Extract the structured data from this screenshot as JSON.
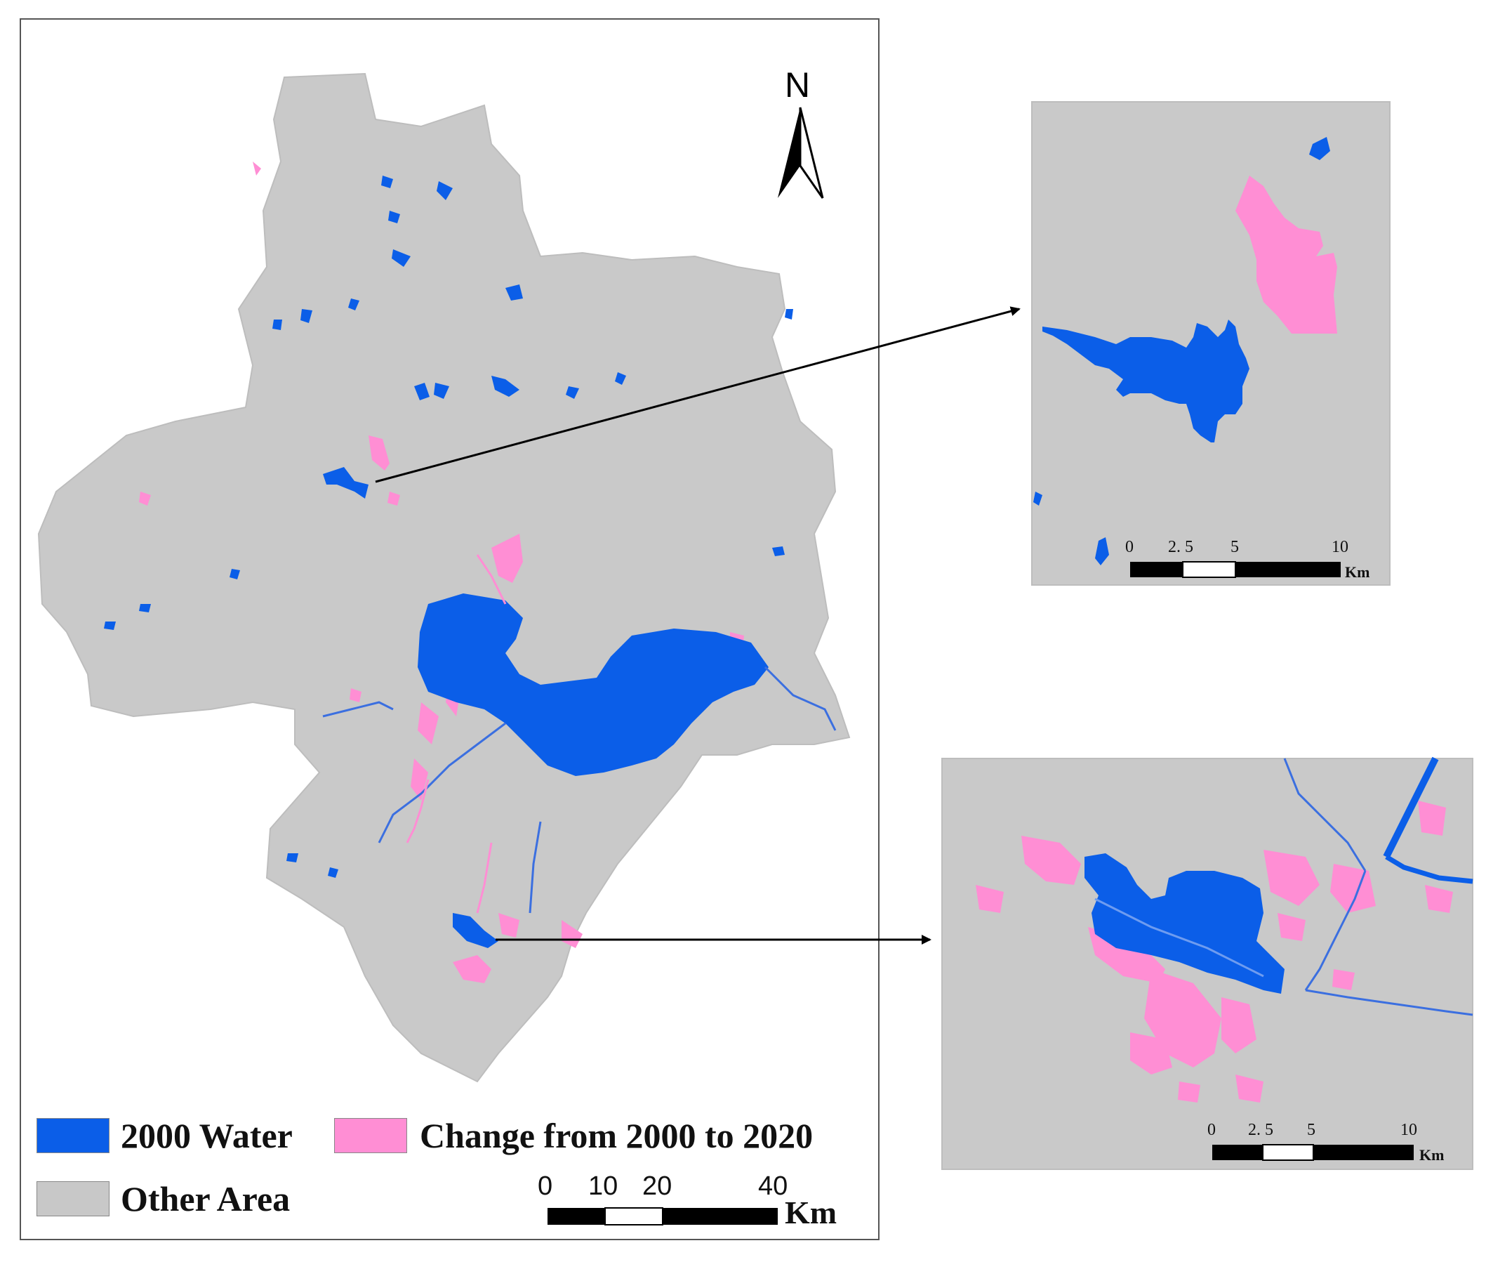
{
  "north_label": "N",
  "legend": {
    "items": [
      {
        "label": "2000 Water",
        "color": "#0b5ee8"
      },
      {
        "label": "Change from 2000 to 2020",
        "color": "#ff8ed4"
      },
      {
        "label": "Other Area",
        "color": "#c8c8c8"
      }
    ]
  },
  "main_scale": {
    "ticks": [
      "0",
      "10",
      "20",
      "40"
    ],
    "unit": "Km"
  },
  "inset_top_scale": {
    "ticks": [
      "0",
      "2. 5",
      "5",
      "10"
    ],
    "unit": "Km"
  },
  "inset_bottom_scale": {
    "ticks": [
      "0",
      "2. 5",
      "5",
      "10"
    ],
    "unit": "Km"
  },
  "colors": {
    "water": "#0b5ee8",
    "change": "#ff8ed4",
    "other": "#c8c8c8",
    "frame": "#555555"
  }
}
